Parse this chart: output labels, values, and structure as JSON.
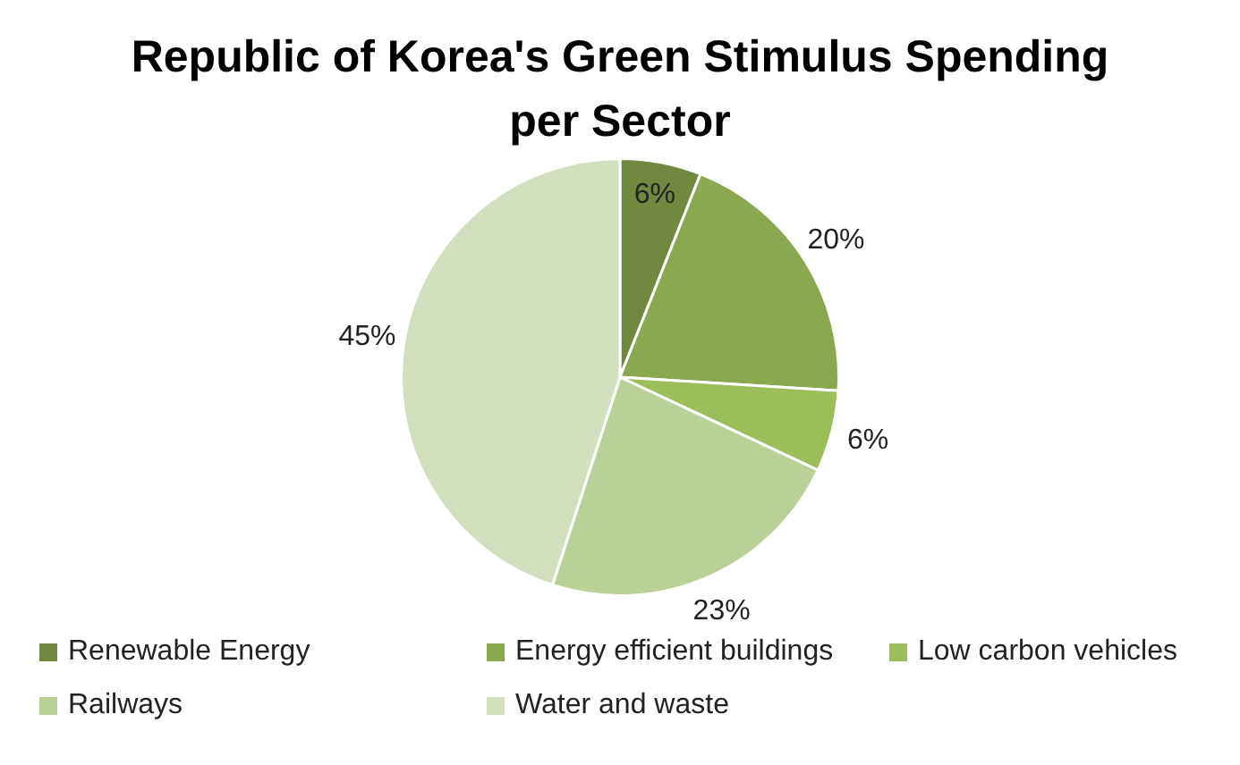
{
  "chart_data": {
    "type": "pie",
    "title": "Republic of Korea's Green Stimulus Spending per Sector",
    "categories": [
      "Renewable Energy",
      "Energy efficient buildings",
      "Low carbon vehicles",
      "Railways",
      "Water and waste"
    ],
    "values": [
      6,
      20,
      6,
      23,
      45
    ],
    "colors": [
      "#71893f",
      "#8aa84f",
      "#9bbd5a",
      "#b9d096",
      "#d2dfbf"
    ],
    "value_labels": [
      "6%",
      "20%",
      "6%",
      "23%",
      "45%"
    ],
    "legend": "bottom"
  }
}
